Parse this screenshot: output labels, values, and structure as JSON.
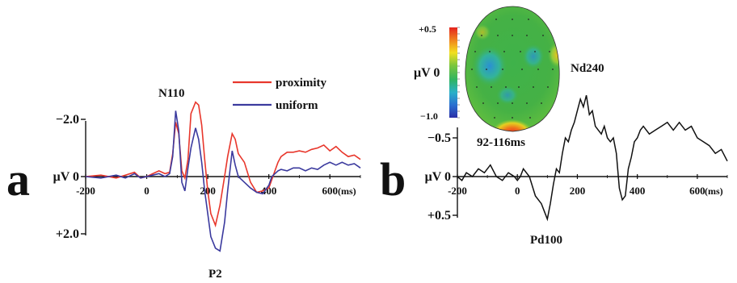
{
  "panels": {
    "a": {
      "letter": "a"
    },
    "b": {
      "letter": "b"
    }
  },
  "colors": {
    "proximity": "#e8372c",
    "uniform": "#3b3a9e",
    "difference": "#111111"
  },
  "chart_data": [
    {
      "type": "line",
      "panel": "a",
      "xlabel": "",
      "x_unit": "(ms)",
      "y_unit": "μV",
      "x_ticks": [
        -200,
        0,
        200,
        400,
        600
      ],
      "x_tick_labels": [
        "-200",
        "0",
        "200",
        "400",
        "600"
      ],
      "xlim": [
        -200,
        700
      ],
      "y_ticks": [
        -2.0,
        0,
        2.0
      ],
      "y_tick_labels": [
        "−2.0",
        "μV 0",
        "+2.0"
      ],
      "ylim": [
        -2.6,
        2.8
      ],
      "y_inverted": true,
      "annotations": [
        {
          "text": "N110",
          "x": 110,
          "y": -2.2
        },
        {
          "text": "P2",
          "x": 230,
          "y": 2.85
        }
      ],
      "legend": {
        "position": "top-center",
        "entries": [
          "proximity",
          "uniform"
        ]
      },
      "series": [
        {
          "name": "proximity",
          "color": "#e8372c",
          "x": [
            -200,
            -150,
            -100,
            -70,
            -40,
            -20,
            0,
            20,
            40,
            60,
            75,
            85,
            95,
            105,
            115,
            125,
            135,
            145,
            160,
            170,
            180,
            190,
            200,
            210,
            225,
            240,
            255,
            265,
            280,
            290,
            300,
            320,
            340,
            360,
            380,
            400,
            410,
            420,
            430,
            440,
            460,
            480,
            500,
            520,
            540,
            560,
            580,
            600,
            620,
            640,
            660,
            680,
            700
          ],
          "y": [
            0,
            -0.05,
            0.05,
            -0.05,
            -0.15,
            0.05,
            0,
            -0.1,
            -0.2,
            -0.1,
            -0.15,
            -0.8,
            -1.9,
            -1.5,
            -0.2,
            0.05,
            -0.6,
            -2.2,
            -2.6,
            -2.5,
            -1.8,
            -0.6,
            0.5,
            1.3,
            1.7,
            1.0,
            0,
            -0.7,
            -1.5,
            -1.3,
            -0.8,
            -0.5,
            0.2,
            0.55,
            0.5,
            0.4,
            0.1,
            -0.2,
            -0.5,
            -0.7,
            -0.85,
            -0.85,
            -0.9,
            -0.85,
            -0.95,
            -1.0,
            -1.1,
            -0.9,
            -1.05,
            -0.85,
            -0.7,
            -0.75,
            -0.6
          ]
        },
        {
          "name": "uniform",
          "color": "#3b3a9e",
          "x": [
            -200,
            -150,
            -100,
            -70,
            -40,
            -20,
            0,
            20,
            40,
            60,
            75,
            85,
            95,
            105,
            115,
            125,
            135,
            145,
            160,
            170,
            180,
            190,
            200,
            210,
            225,
            240,
            255,
            265,
            280,
            290,
            300,
            320,
            340,
            360,
            380,
            400,
            410,
            420,
            430,
            440,
            460,
            480,
            500,
            520,
            540,
            560,
            580,
            600,
            620,
            640,
            660,
            680,
            700
          ],
          "y": [
            0,
            0.05,
            -0.05,
            0.05,
            -0.1,
            0.05,
            0,
            -0.05,
            -0.1,
            0,
            -0.1,
            -0.7,
            -2.3,
            -1.6,
            0.2,
            0.5,
            -0.3,
            -1.0,
            -1.7,
            -1.3,
            -0.5,
            0.5,
            1.3,
            2.1,
            2.5,
            2.6,
            1.6,
            0.5,
            -0.9,
            -0.4,
            0,
            0.2,
            0.4,
            0.55,
            0.6,
            0.3,
            0,
            -0.1,
            -0.2,
            -0.25,
            -0.2,
            -0.3,
            -0.3,
            -0.2,
            -0.3,
            -0.25,
            -0.4,
            -0.5,
            -0.4,
            -0.5,
            -0.4,
            -0.45,
            -0.3
          ]
        }
      ]
    },
    {
      "type": "line",
      "panel": "b",
      "xlabel": "",
      "x_unit": "(ms)",
      "y_unit": "μV",
      "x_ticks": [
        -200,
        0,
        200,
        400,
        600
      ],
      "x_tick_labels": [
        "-200",
        "0",
        "200",
        "400",
        "600"
      ],
      "xlim": [
        -200,
        700
      ],
      "y_ticks": [
        -0.5,
        0,
        0.5
      ],
      "y_tick_labels": [
        "−0.5",
        "μV 0",
        "+0.5"
      ],
      "ylim": [
        -1.15,
        0.62
      ],
      "y_inverted": true,
      "annotations": [
        {
          "text": "Nd240",
          "x": 240,
          "y": -1.18
        },
        {
          "text": "Pd100",
          "x": 100,
          "y": 0.7
        },
        {
          "text": "92-116ms",
          "x": 30,
          "y": -0.5
        }
      ],
      "series": [
        {
          "name": "",
          "color": "#111111",
          "x": [
            -200,
            -185,
            -170,
            -150,
            -130,
            -110,
            -90,
            -70,
            -50,
            -30,
            -10,
            0,
            10,
            20,
            40,
            60,
            80,
            90,
            100,
            110,
            120,
            130,
            140,
            150,
            160,
            170,
            180,
            190,
            200,
            210,
            220,
            230,
            240,
            250,
            260,
            270,
            280,
            290,
            300,
            310,
            320,
            330,
            340,
            350,
            360,
            370,
            380,
            390,
            400,
            410,
            420,
            440,
            460,
            480,
            500,
            520,
            540,
            560,
            580,
            600,
            620,
            640,
            660,
            680,
            700
          ],
          "y": [
            0,
            0.05,
            -0.05,
            0,
            -0.1,
            -0.05,
            -0.15,
            0,
            0.05,
            -0.05,
            0,
            0.05,
            0,
            -0.1,
            0,
            0.25,
            0.35,
            0.45,
            0.55,
            0.35,
            0.1,
            -0.1,
            -0.05,
            -0.3,
            -0.5,
            -0.45,
            -0.6,
            -0.7,
            -0.85,
            -1.0,
            -0.9,
            -1.05,
            -0.8,
            -0.85,
            -0.65,
            -0.6,
            -0.55,
            -0.65,
            -0.5,
            -0.45,
            -0.5,
            -0.3,
            0.15,
            0.3,
            0.25,
            -0.1,
            -0.25,
            -0.45,
            -0.5,
            -0.6,
            -0.65,
            -0.55,
            -0.6,
            -0.65,
            -0.7,
            -0.6,
            -0.7,
            -0.6,
            -0.65,
            -0.5,
            -0.45,
            -0.4,
            -0.3,
            -0.35,
            -0.2
          ]
        }
      ]
    }
  ],
  "topomap": {
    "range_label": "92-116ms",
    "unit_label": "μV 0",
    "colorbar_top": "+0.5",
    "colorbar_bottom": "−1.0"
  }
}
